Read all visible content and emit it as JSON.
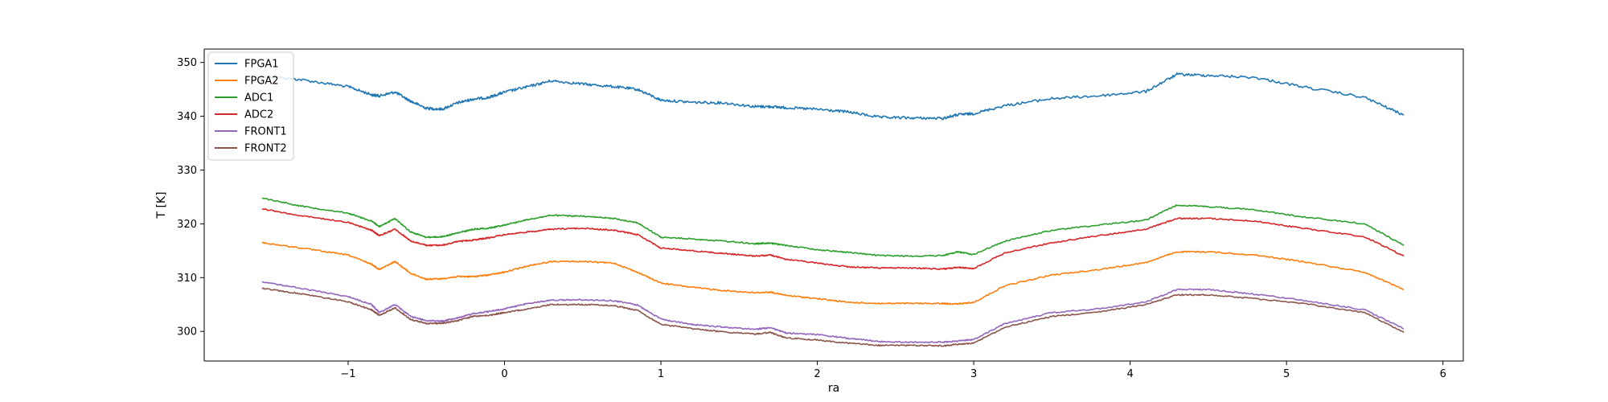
{
  "chart_data": {
    "type": "line",
    "title": "",
    "xlabel": "ra",
    "ylabel": "T [K]",
    "xlim": [
      -1.92,
      6.13
    ],
    "ylim": [
      294.5,
      352.5
    ],
    "xticks": [
      -1,
      0,
      1,
      2,
      3,
      4,
      5,
      6
    ],
    "xtick_labels": [
      "−1",
      "0",
      "1",
      "2",
      "3",
      "4",
      "5",
      "6"
    ],
    "yticks": [
      300,
      310,
      320,
      330,
      340,
      350
    ],
    "ytick_labels": [
      "300",
      "310",
      "320",
      "330",
      "340",
      "350"
    ],
    "grid": false,
    "legend_position": "upper-left",
    "x": [
      -1.55,
      -1.3,
      -1.0,
      -0.85,
      -0.8,
      -0.7,
      -0.6,
      -0.5,
      -0.4,
      -0.3,
      -0.2,
      -0.1,
      0.0,
      0.15,
      0.3,
      0.5,
      0.7,
      0.85,
      1.0,
      1.2,
      1.4,
      1.6,
      1.7,
      1.8,
      2.0,
      2.2,
      2.4,
      2.6,
      2.8,
      2.9,
      3.0,
      3.2,
      3.5,
      3.8,
      4.1,
      4.3,
      4.5,
      4.8,
      5.1,
      5.5,
      5.75
    ],
    "series": [
      {
        "name": "FPGA1",
        "color": "#1f77b4",
        "values": [
          347.5,
          346.8,
          345.5,
          344,
          343.8,
          344.5,
          342.8,
          341.5,
          341.3,
          342.5,
          343.2,
          343.5,
          344.5,
          345.5,
          346.6,
          346,
          345.5,
          345,
          343,
          342.6,
          342.5,
          341.8,
          341.8,
          341.6,
          341.3,
          340.8,
          339.8,
          339.7,
          339.6,
          340.3,
          340.5,
          342,
          343.3,
          343.8,
          344.6,
          347.8,
          347.6,
          347.2,
          345.5,
          343.5,
          340.2
        ]
      },
      {
        "name": "FPGA2",
        "color": "#ff7f0e",
        "values": [
          316.5,
          315.5,
          314.2,
          312.5,
          311.5,
          313,
          310.8,
          309.7,
          309.8,
          310.2,
          310.2,
          310.5,
          311,
          312.2,
          313,
          313,
          312.7,
          311,
          309,
          308.2,
          307.6,
          307.2,
          307.3,
          306.7,
          306.1,
          305.4,
          305.2,
          305.2,
          305.2,
          305.1,
          305.4,
          308.5,
          310.5,
          311.5,
          312.8,
          314.8,
          314.8,
          314.2,
          313,
          311,
          307.8
        ]
      },
      {
        "name": "ADC1",
        "color": "#2ca02c",
        "values": [
          324.8,
          323.3,
          322,
          320.5,
          319.5,
          321,
          318.5,
          317.5,
          317.6,
          318.3,
          319,
          319.2,
          319.8,
          320.8,
          321.6,
          321.4,
          321,
          320.2,
          317.5,
          317.2,
          316.8,
          316.3,
          316.4,
          316,
          315.2,
          314.7,
          314.1,
          314,
          314.1,
          314.8,
          314.3,
          316.8,
          318.8,
          319.8,
          320.7,
          323.5,
          323.2,
          322.6,
          321.3,
          320,
          316
        ]
      },
      {
        "name": "ADC2",
        "color": "#d62728",
        "values": [
          322.8,
          321.5,
          320.3,
          318.8,
          317.8,
          319,
          316.8,
          316,
          316,
          316.7,
          317,
          317.4,
          318,
          318.5,
          319,
          319.2,
          318.8,
          318,
          315.5,
          315,
          314.5,
          314,
          314.2,
          313.4,
          312.7,
          312,
          311.8,
          311.8,
          311.6,
          311.9,
          311.7,
          314.6,
          316.5,
          317.8,
          319,
          321,
          321,
          320.5,
          319.2,
          317.6,
          314
        ]
      },
      {
        "name": "FRONT1",
        "color": "#9467bd",
        "values": [
          309.2,
          308,
          306.5,
          305,
          303.5,
          305,
          302.8,
          302,
          301.9,
          302.5,
          303.3,
          303.7,
          304.2,
          305.2,
          305.8,
          305.9,
          305.7,
          304.9,
          302.3,
          301.3,
          300.8,
          300.4,
          300.7,
          299.7,
          299.4,
          298.7,
          298.1,
          298,
          298,
          298.2,
          298.5,
          301.5,
          303.5,
          304.2,
          305.5,
          307.8,
          307.8,
          306.9,
          305.8,
          304,
          300.5
        ]
      },
      {
        "name": "FRONT2",
        "color": "#8c564b",
        "values": [
          308,
          307,
          305.5,
          304,
          303,
          304.4,
          302.2,
          301.5,
          301.5,
          302,
          302.8,
          303,
          303.5,
          304.2,
          305,
          305,
          304.8,
          303.9,
          301.3,
          300.5,
          299.9,
          299.5,
          299.8,
          298.8,
          298.4,
          297.8,
          297.4,
          297.4,
          297.3,
          297.6,
          297.8,
          300.8,
          302.8,
          303.6,
          305,
          306.8,
          306.8,
          306.1,
          305.2,
          303.5,
          299.8
        ]
      }
    ]
  }
}
